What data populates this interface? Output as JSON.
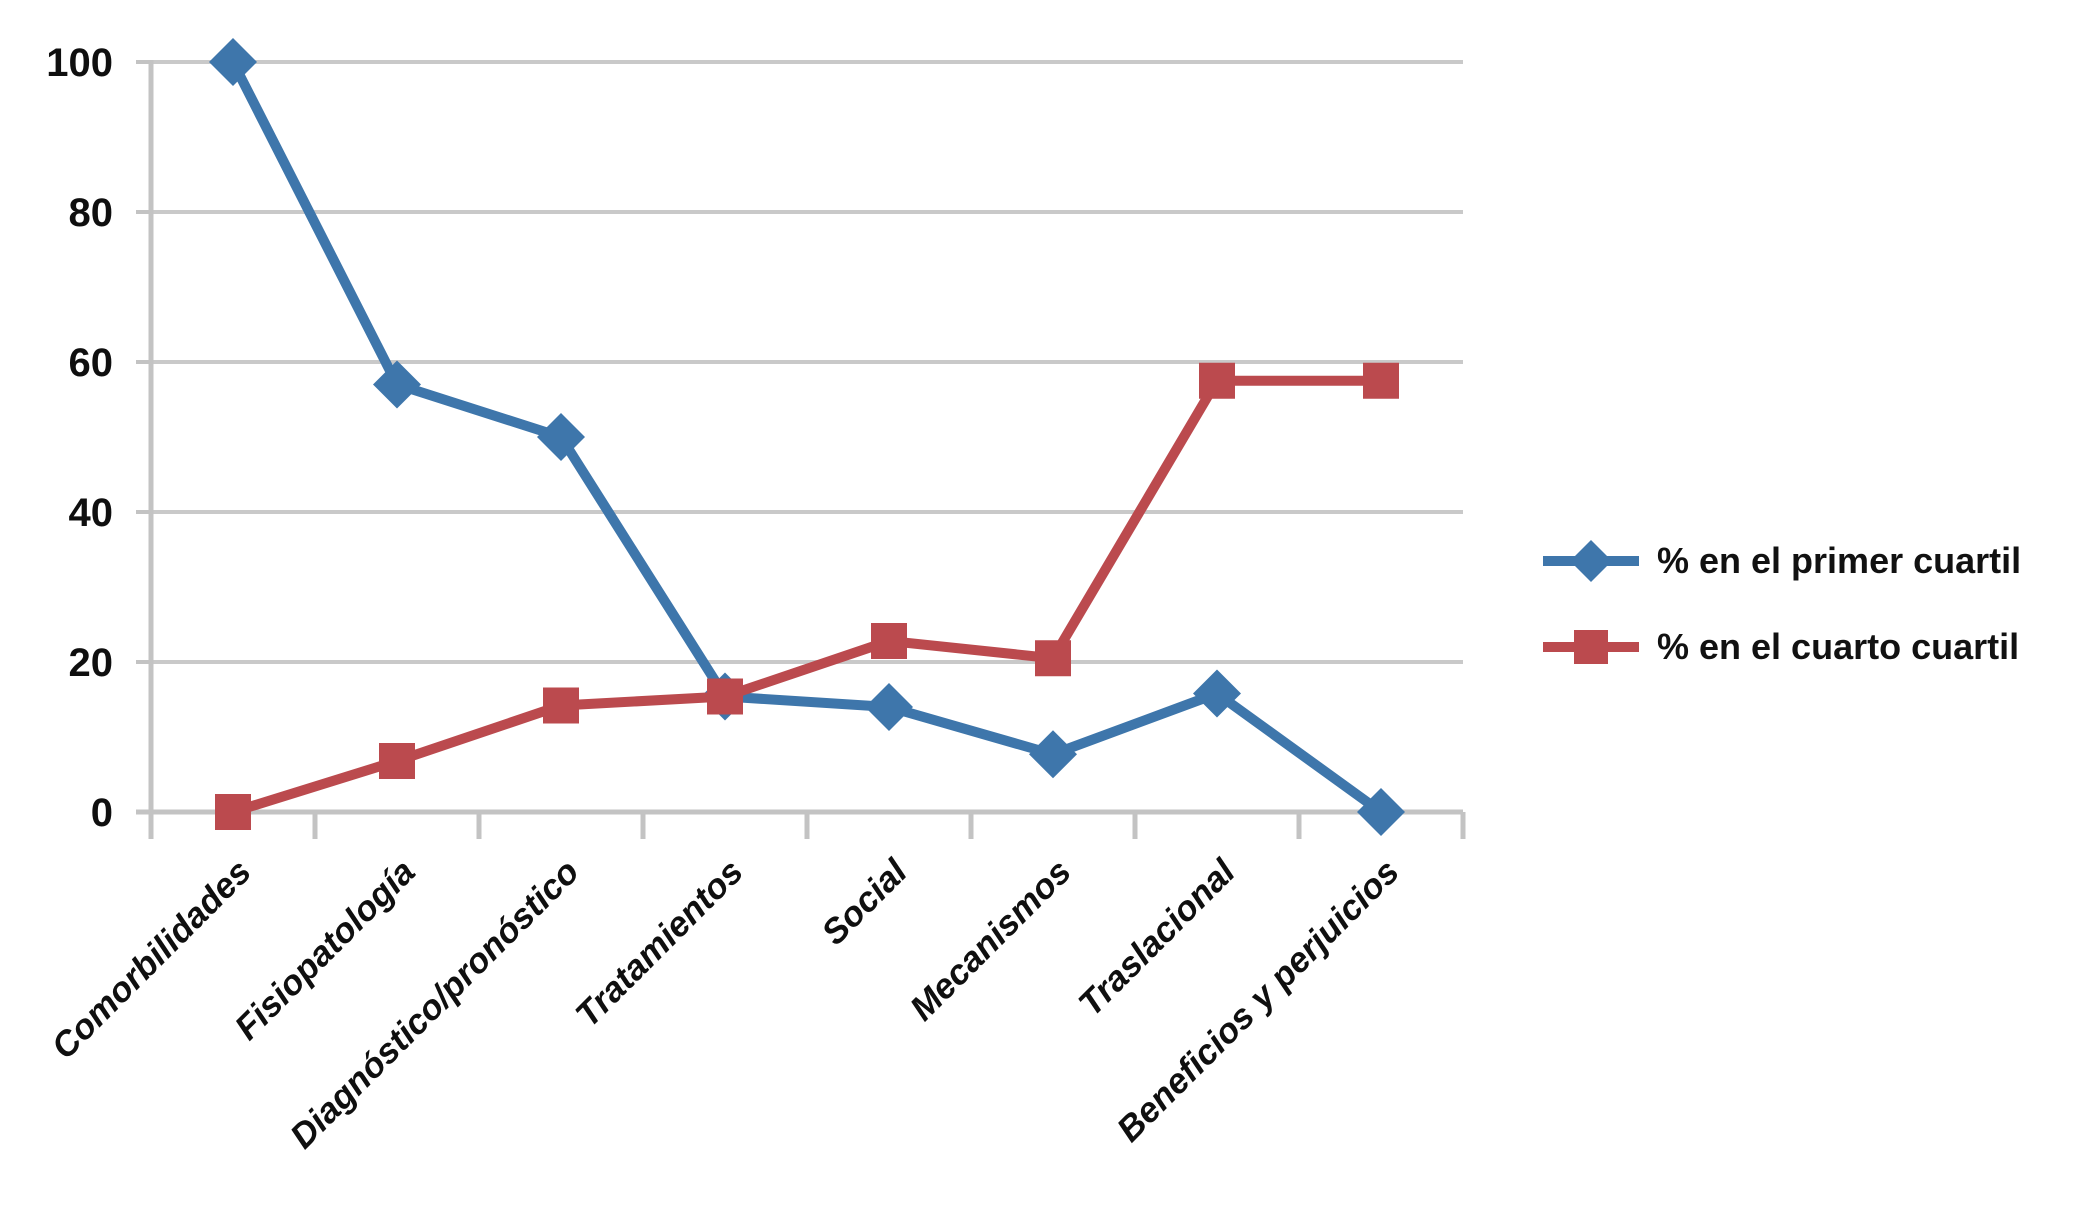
{
  "figure": {
    "background": "#FFFFFF"
  },
  "chart_data": {
    "type": "line",
    "title": "",
    "xlabel": "",
    "ylabel": "",
    "categories": [
      "Comorbilidades",
      "Fisiopatología",
      "Diagnóstico/pronóstico",
      "Tratamientos",
      "Social",
      "Mecanismos",
      "Traslacional",
      "Beneficios y perjuicios"
    ],
    "series": [
      {
        "name": "% en el primer cuartil",
        "color": "#3E76AB",
        "marker": "diamond",
        "values": [
          100,
          57,
          50,
          15.4,
          14,
          7.7,
          15.8,
          0
        ]
      },
      {
        "name": "% en el cuarto cuartil",
        "color": "#BB4A4E",
        "marker": "square",
        "values": [
          0,
          6.8,
          14.2,
          15.4,
          22.8,
          20.5,
          57.5,
          57.5
        ]
      }
    ],
    "ylim": [
      0,
      100
    ],
    "yticks": [
      0,
      20,
      40,
      60,
      80,
      100
    ],
    "grid": true,
    "gridline_color": "#C9C9C9",
    "axis_color": "#C3C3C3",
    "tick_label_color": "#0F0F0F",
    "legend_position": "right-middle",
    "legend_text_color": "#111111"
  }
}
